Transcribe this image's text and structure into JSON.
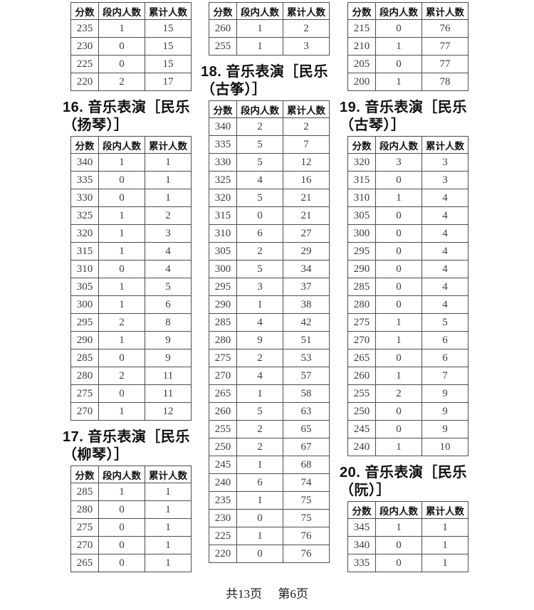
{
  "table_columns": [
    "分数",
    "段内人数",
    "累计人数"
  ],
  "left_column": {
    "prev_section_continued": {
      "rows": [
        [
          235,
          1,
          15
        ],
        [
          230,
          0,
          15
        ],
        [
          225,
          0,
          15
        ],
        [
          220,
          2,
          17
        ]
      ]
    },
    "section_16": {
      "title_line1": "16. 音乐表演［民乐",
      "title_line2": "（扬琴）］",
      "rows": [
        [
          340,
          1,
          1
        ],
        [
          335,
          0,
          1
        ],
        [
          330,
          0,
          1
        ],
        [
          325,
          1,
          2
        ],
        [
          320,
          1,
          3
        ],
        [
          315,
          1,
          4
        ],
        [
          310,
          0,
          4
        ],
        [
          305,
          1,
          5
        ],
        [
          300,
          1,
          6
        ],
        [
          295,
          2,
          8
        ],
        [
          290,
          1,
          9
        ],
        [
          285,
          0,
          9
        ],
        [
          280,
          2,
          11
        ],
        [
          275,
          0,
          11
        ],
        [
          270,
          1,
          12
        ]
      ]
    },
    "section_17": {
      "title_line1": "17. 音乐表演［民乐",
      "title_line2": "（柳琴）］",
      "rows": [
        [
          285,
          1,
          1
        ],
        [
          280,
          0,
          1
        ],
        [
          275,
          0,
          1
        ],
        [
          270,
          0,
          1
        ],
        [
          265,
          0,
          1
        ]
      ]
    }
  },
  "middle_column": {
    "prev_section_continued": {
      "rows": [
        [
          260,
          1,
          2
        ],
        [
          255,
          1,
          3
        ]
      ]
    },
    "section_18": {
      "title_line1": "18. 音乐表演［民乐",
      "title_line2": "（古筝）］",
      "rows": [
        [
          340,
          2,
          2
        ],
        [
          335,
          5,
          7
        ],
        [
          330,
          5,
          12
        ],
        [
          325,
          4,
          16
        ],
        [
          320,
          5,
          21
        ],
        [
          315,
          0,
          21
        ],
        [
          310,
          6,
          27
        ],
        [
          305,
          2,
          29
        ],
        [
          300,
          5,
          34
        ],
        [
          295,
          3,
          37
        ],
        [
          290,
          1,
          38
        ],
        [
          285,
          4,
          42
        ],
        [
          280,
          9,
          51
        ],
        [
          275,
          2,
          53
        ],
        [
          270,
          4,
          57
        ],
        [
          265,
          1,
          58
        ],
        [
          260,
          5,
          63
        ],
        [
          255,
          2,
          65
        ],
        [
          250,
          2,
          67
        ],
        [
          245,
          1,
          68
        ],
        [
          240,
          6,
          74
        ],
        [
          235,
          1,
          75
        ],
        [
          230,
          0,
          75
        ],
        [
          225,
          1,
          76
        ],
        [
          220,
          0,
          76
        ]
      ]
    }
  },
  "right_column": {
    "prev_section_continued": {
      "rows": [
        [
          215,
          0,
          76
        ],
        [
          210,
          1,
          77
        ],
        [
          205,
          0,
          77
        ],
        [
          200,
          1,
          78
        ]
      ]
    },
    "section_19": {
      "title_line1": "19. 音乐表演［民乐",
      "title_line2": "（古琴）］",
      "rows": [
        [
          320,
          3,
          3
        ],
        [
          315,
          0,
          3
        ],
        [
          310,
          1,
          4
        ],
        [
          305,
          0,
          4
        ],
        [
          300,
          0,
          4
        ],
        [
          295,
          0,
          4
        ],
        [
          290,
          0,
          4
        ],
        [
          285,
          0,
          4
        ],
        [
          280,
          0,
          4
        ],
        [
          275,
          1,
          5
        ],
        [
          270,
          1,
          6
        ],
        [
          265,
          0,
          6
        ],
        [
          260,
          1,
          7
        ],
        [
          255,
          2,
          9
        ],
        [
          250,
          0,
          9
        ],
        [
          245,
          0,
          9
        ],
        [
          240,
          1,
          10
        ]
      ]
    },
    "section_20": {
      "title_line1": "20. 音乐表演［民乐",
      "title_line2": "（阮）］",
      "rows": [
        [
          345,
          1,
          1
        ],
        [
          340,
          0,
          1
        ],
        [
          335,
          0,
          1
        ]
      ]
    }
  },
  "footer": {
    "pages_total": "共13页",
    "page_current": "第6页"
  }
}
